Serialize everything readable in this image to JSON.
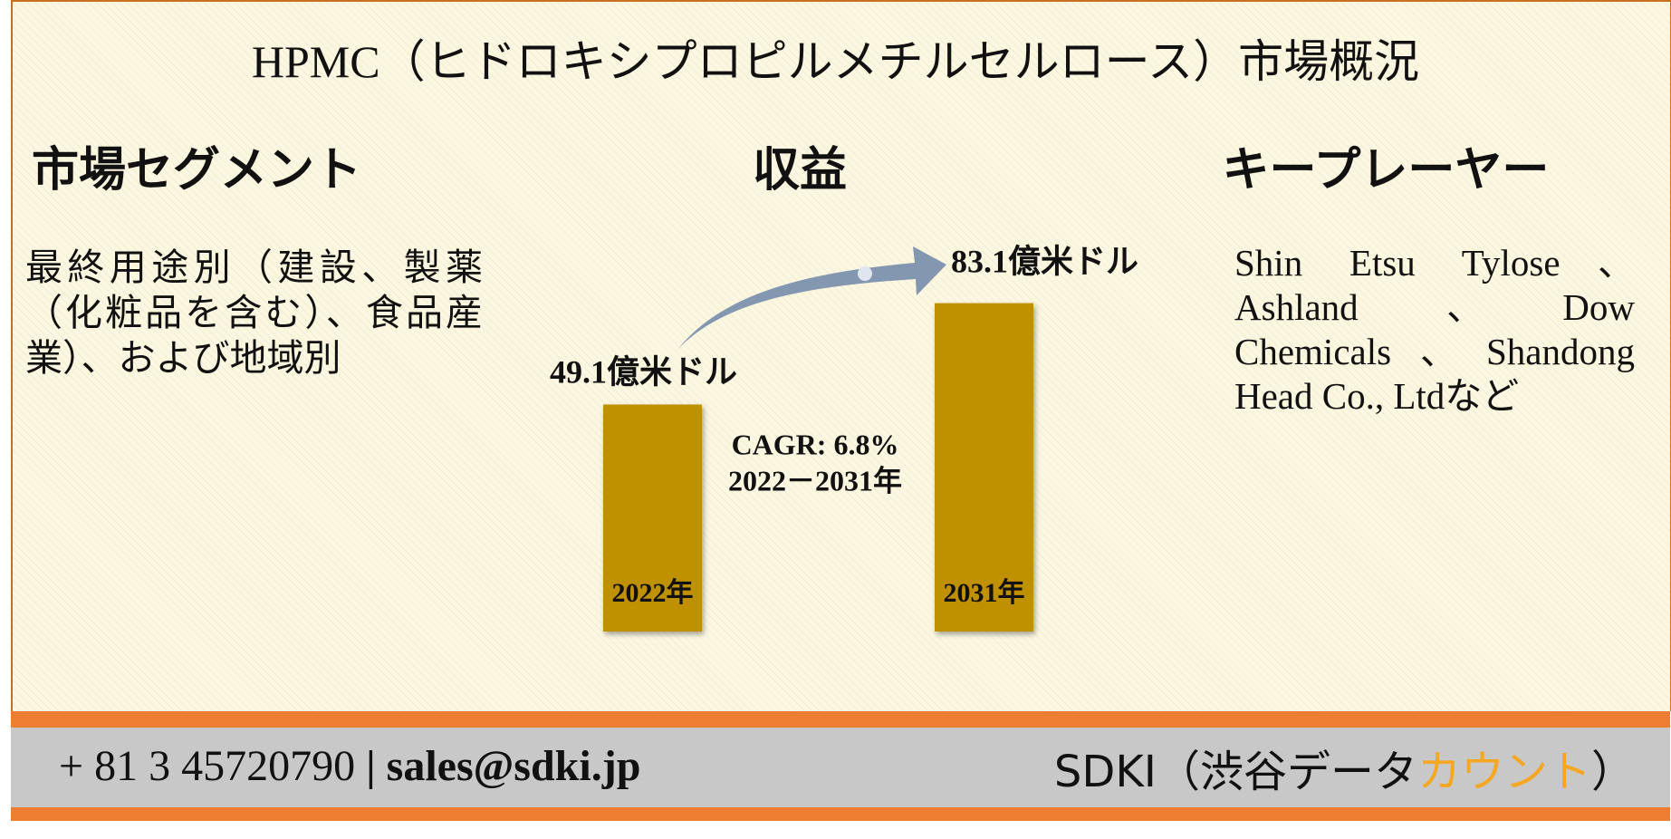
{
  "title": "HPMC（ヒドロキシプロピルメチルセルロース）市場概況",
  "segment": {
    "heading": "市場セグメント",
    "text": "最終用途別（建設、製薬（化粧品を含む）、食品産業）、および地域別"
  },
  "revenue": {
    "heading": "収益",
    "bars": [
      {
        "year": "2022年",
        "value": 49.1,
        "value_label": "49.1億米ドル"
      },
      {
        "year": "2031年",
        "value": 83.1,
        "value_label": "83.1億米ドル"
      }
    ],
    "cagr": "CAGR: 6.8%",
    "period": "2022－2031年"
  },
  "players": {
    "heading": "キープレーヤー",
    "text": "Shin Etsu Tylose、Ashland 、Dow Chemicals、Shandong Head Co., Ltdなど"
  },
  "footer": {
    "phone": "+ 81 3 45720790",
    "separator": "|",
    "email": "sales@sdki.jp",
    "brand": [
      "SDKI（渋谷データ",
      "カウント",
      "）"
    ]
  }
}
